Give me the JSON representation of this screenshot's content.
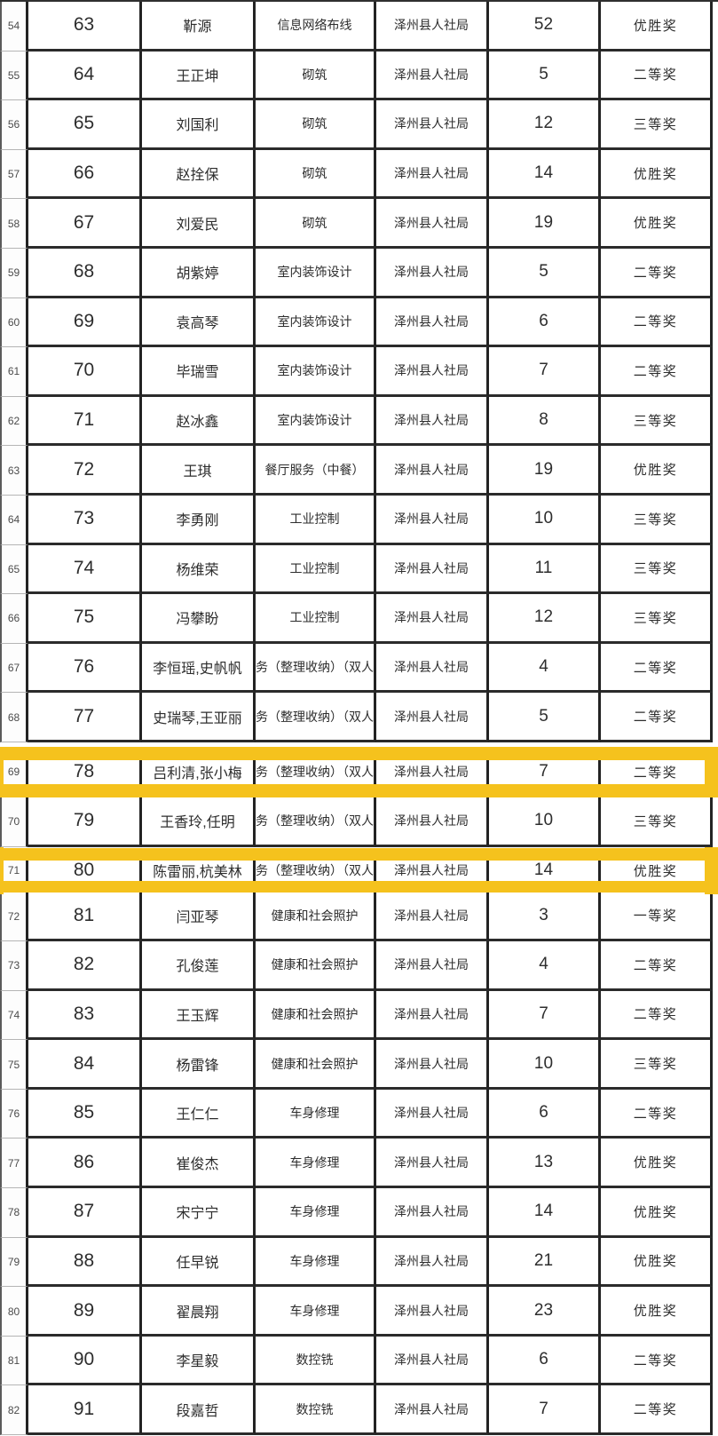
{
  "page": {
    "background": "#ffffff",
    "highlight_color": "#F5C21D",
    "highlighted_row_indices": [
      "69",
      "71"
    ]
  },
  "table": {
    "organization_repeated": "泽州县人社局",
    "rows": [
      {
        "idx": "54",
        "num": "63",
        "name": "靳源",
        "skill": "信息网络布线",
        "org": "泽州县人社局",
        "score": "52",
        "award": "优胜奖",
        "highlight": false
      },
      {
        "idx": "55",
        "num": "64",
        "name": "王正坤",
        "skill": "砌筑",
        "org": "泽州县人社局",
        "score": "5",
        "award": "二等奖",
        "highlight": false
      },
      {
        "idx": "56",
        "num": "65",
        "name": "刘国利",
        "skill": "砌筑",
        "org": "泽州县人社局",
        "score": "12",
        "award": "三等奖",
        "highlight": false
      },
      {
        "idx": "57",
        "num": "66",
        "name": "赵拴保",
        "skill": "砌筑",
        "org": "泽州县人社局",
        "score": "14",
        "award": "优胜奖",
        "highlight": false
      },
      {
        "idx": "58",
        "num": "67",
        "name": "刘爱民",
        "skill": "砌筑",
        "org": "泽州县人社局",
        "score": "19",
        "award": "优胜奖",
        "highlight": false
      },
      {
        "idx": "59",
        "num": "68",
        "name": "胡紫婷",
        "skill": "室内装饰设计",
        "org": "泽州县人社局",
        "score": "5",
        "award": "二等奖",
        "highlight": false
      },
      {
        "idx": "60",
        "num": "69",
        "name": "袁高琴",
        "skill": "室内装饰设计",
        "org": "泽州县人社局",
        "score": "6",
        "award": "二等奖",
        "highlight": false
      },
      {
        "idx": "61",
        "num": "70",
        "name": "毕瑞雪",
        "skill": "室内装饰设计",
        "org": "泽州县人社局",
        "score": "7",
        "award": "二等奖",
        "highlight": false
      },
      {
        "idx": "62",
        "num": "71",
        "name": "赵冰鑫",
        "skill": "室内装饰设计",
        "org": "泽州县人社局",
        "score": "8",
        "award": "三等奖",
        "highlight": false
      },
      {
        "idx": "63",
        "num": "72",
        "name": "王琪",
        "skill": "餐厅服务（中餐）",
        "org": "泽州县人社局",
        "score": "19",
        "award": "优胜奖",
        "highlight": false
      },
      {
        "idx": "64",
        "num": "73",
        "name": "李勇刚",
        "skill": "工业控制",
        "org": "泽州县人社局",
        "score": "10",
        "award": "三等奖",
        "highlight": false
      },
      {
        "idx": "65",
        "num": "74",
        "name": "杨维荣",
        "skill": "工业控制",
        "org": "泽州县人社局",
        "score": "11",
        "award": "三等奖",
        "highlight": false
      },
      {
        "idx": "66",
        "num": "75",
        "name": "冯攀盼",
        "skill": "工业控制",
        "org": "泽州县人社局",
        "score": "12",
        "award": "三等奖",
        "highlight": false
      },
      {
        "idx": "67",
        "num": "76",
        "name": "李恒瑶,史帆帆",
        "skill": "务（整理收纳）（双人",
        "org": "泽州县人社局",
        "score": "4",
        "award": "二等奖",
        "highlight": false
      },
      {
        "idx": "68",
        "num": "77",
        "name": "史瑞琴,王亚丽",
        "skill": "务（整理收纳）（双人",
        "org": "泽州县人社局",
        "score": "5",
        "award": "二等奖",
        "highlight": false
      },
      {
        "idx": "69",
        "num": "78",
        "name": "吕利清,张小梅",
        "skill": "务（整理收纳）（双人",
        "org": "泽州县人社局",
        "score": "7",
        "award": "二等奖",
        "highlight": true
      },
      {
        "idx": "70",
        "num": "79",
        "name": "王香玲,任明",
        "skill": "务（整理收纳）（双人",
        "org": "泽州县人社局",
        "score": "10",
        "award": "三等奖",
        "highlight": false
      },
      {
        "idx": "71",
        "num": "80",
        "name": "陈雷丽,杭美林",
        "skill": "务（整理收纳）（双人",
        "org": "泽州县人社局",
        "score": "14",
        "award": "优胜奖",
        "highlight": true
      },
      {
        "idx": "72",
        "num": "81",
        "name": "闫亚琴",
        "skill": "健康和社会照护",
        "org": "泽州县人社局",
        "score": "3",
        "award": "一等奖",
        "highlight": false
      },
      {
        "idx": "73",
        "num": "82",
        "name": "孔俊莲",
        "skill": "健康和社会照护",
        "org": "泽州县人社局",
        "score": "4",
        "award": "二等奖",
        "highlight": false
      },
      {
        "idx": "74",
        "num": "83",
        "name": "王玉辉",
        "skill": "健康和社会照护",
        "org": "泽州县人社局",
        "score": "7",
        "award": "二等奖",
        "highlight": false
      },
      {
        "idx": "75",
        "num": "84",
        "name": "杨雷锋",
        "skill": "健康和社会照护",
        "org": "泽州县人社局",
        "score": "10",
        "award": "三等奖",
        "highlight": false
      },
      {
        "idx": "76",
        "num": "85",
        "name": "王仁仁",
        "skill": "车身修理",
        "org": "泽州县人社局",
        "score": "6",
        "award": "二等奖",
        "highlight": false
      },
      {
        "idx": "77",
        "num": "86",
        "name": "崔俊杰",
        "skill": "车身修理",
        "org": "泽州县人社局",
        "score": "13",
        "award": "优胜奖",
        "highlight": false
      },
      {
        "idx": "78",
        "num": "87",
        "name": "宋宁宁",
        "skill": "车身修理",
        "org": "泽州县人社局",
        "score": "14",
        "award": "优胜奖",
        "highlight": false
      },
      {
        "idx": "79",
        "num": "88",
        "name": "任早锐",
        "skill": "车身修理",
        "org": "泽州县人社局",
        "score": "21",
        "award": "优胜奖",
        "highlight": false
      },
      {
        "idx": "80",
        "num": "89",
        "name": "翟晨翔",
        "skill": "车身修理",
        "org": "泽州县人社局",
        "score": "23",
        "award": "优胜奖",
        "highlight": false
      },
      {
        "idx": "81",
        "num": "90",
        "name": "李星毅",
        "skill": "数控铣",
        "org": "泽州县人社局",
        "score": "6",
        "award": "二等奖",
        "highlight": false
      },
      {
        "idx": "82",
        "num": "91",
        "name": "段嘉哲",
        "skill": "数控铣",
        "org": "泽州县人社局",
        "score": "7",
        "award": "二等奖",
        "highlight": false
      }
    ]
  }
}
